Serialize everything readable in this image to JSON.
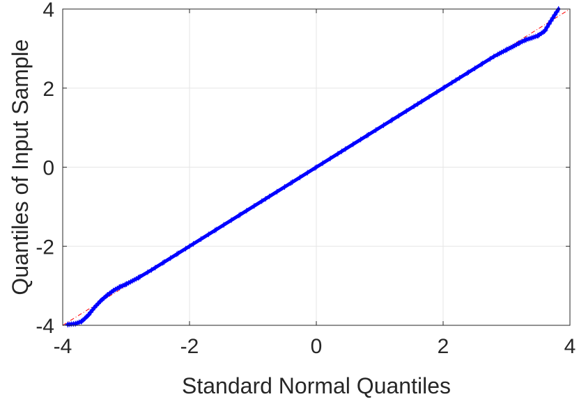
{
  "chart_data": {
    "type": "scatter",
    "title": "",
    "xlabel": "Standard Normal Quantiles",
    "ylabel": "Quantiles of Input Sample",
    "xlim": [
      -4,
      4
    ],
    "ylim": [
      -4,
      4
    ],
    "x_ticks": [
      -4,
      -2,
      0,
      2,
      4
    ],
    "y_ticks": [
      -4,
      -2,
      0,
      2,
      4
    ],
    "x_tick_labels": [
      "-4",
      "-2",
      "0",
      "2",
      "4"
    ],
    "y_tick_labels": [
      "-4",
      "-2",
      "0",
      "2",
      "4"
    ],
    "grid": true,
    "legend": "none",
    "colors": {
      "points": "#0000ff",
      "reference_line": "#ff0000",
      "grid": "#e6e6e6",
      "axes": "#262626"
    },
    "series": [
      {
        "marker": "+",
        "x": [
          -3.92,
          -3.8,
          -3.7,
          -3.6,
          -3.5,
          -3.4,
          -3.3,
          -3.2,
          -3.1,
          -3.0,
          -2.8,
          -2.6,
          -2.4,
          -2.2,
          -2.0,
          -1.6,
          -1.2,
          -0.8,
          -0.4,
          0.0,
          0.4,
          0.8,
          1.2,
          1.6,
          2.0,
          2.2,
          2.4,
          2.6,
          2.8,
          3.0,
          3.1,
          3.2,
          3.3,
          3.4,
          3.5,
          3.6,
          3.7,
          3.82
        ],
        "y": [
          -3.98,
          -3.96,
          -3.9,
          -3.75,
          -3.55,
          -3.38,
          -3.24,
          -3.12,
          -3.03,
          -2.96,
          -2.79,
          -2.6,
          -2.4,
          -2.2,
          -2.0,
          -1.6,
          -1.2,
          -0.8,
          -0.4,
          0.0,
          0.4,
          0.8,
          1.2,
          1.6,
          2.0,
          2.2,
          2.4,
          2.6,
          2.8,
          2.97,
          3.05,
          3.14,
          3.22,
          3.27,
          3.33,
          3.44,
          3.7,
          4.0
        ]
      }
    ],
    "reference_line": {
      "x": [
        -4,
        4
      ],
      "y": [
        -4,
        4
      ]
    }
  }
}
